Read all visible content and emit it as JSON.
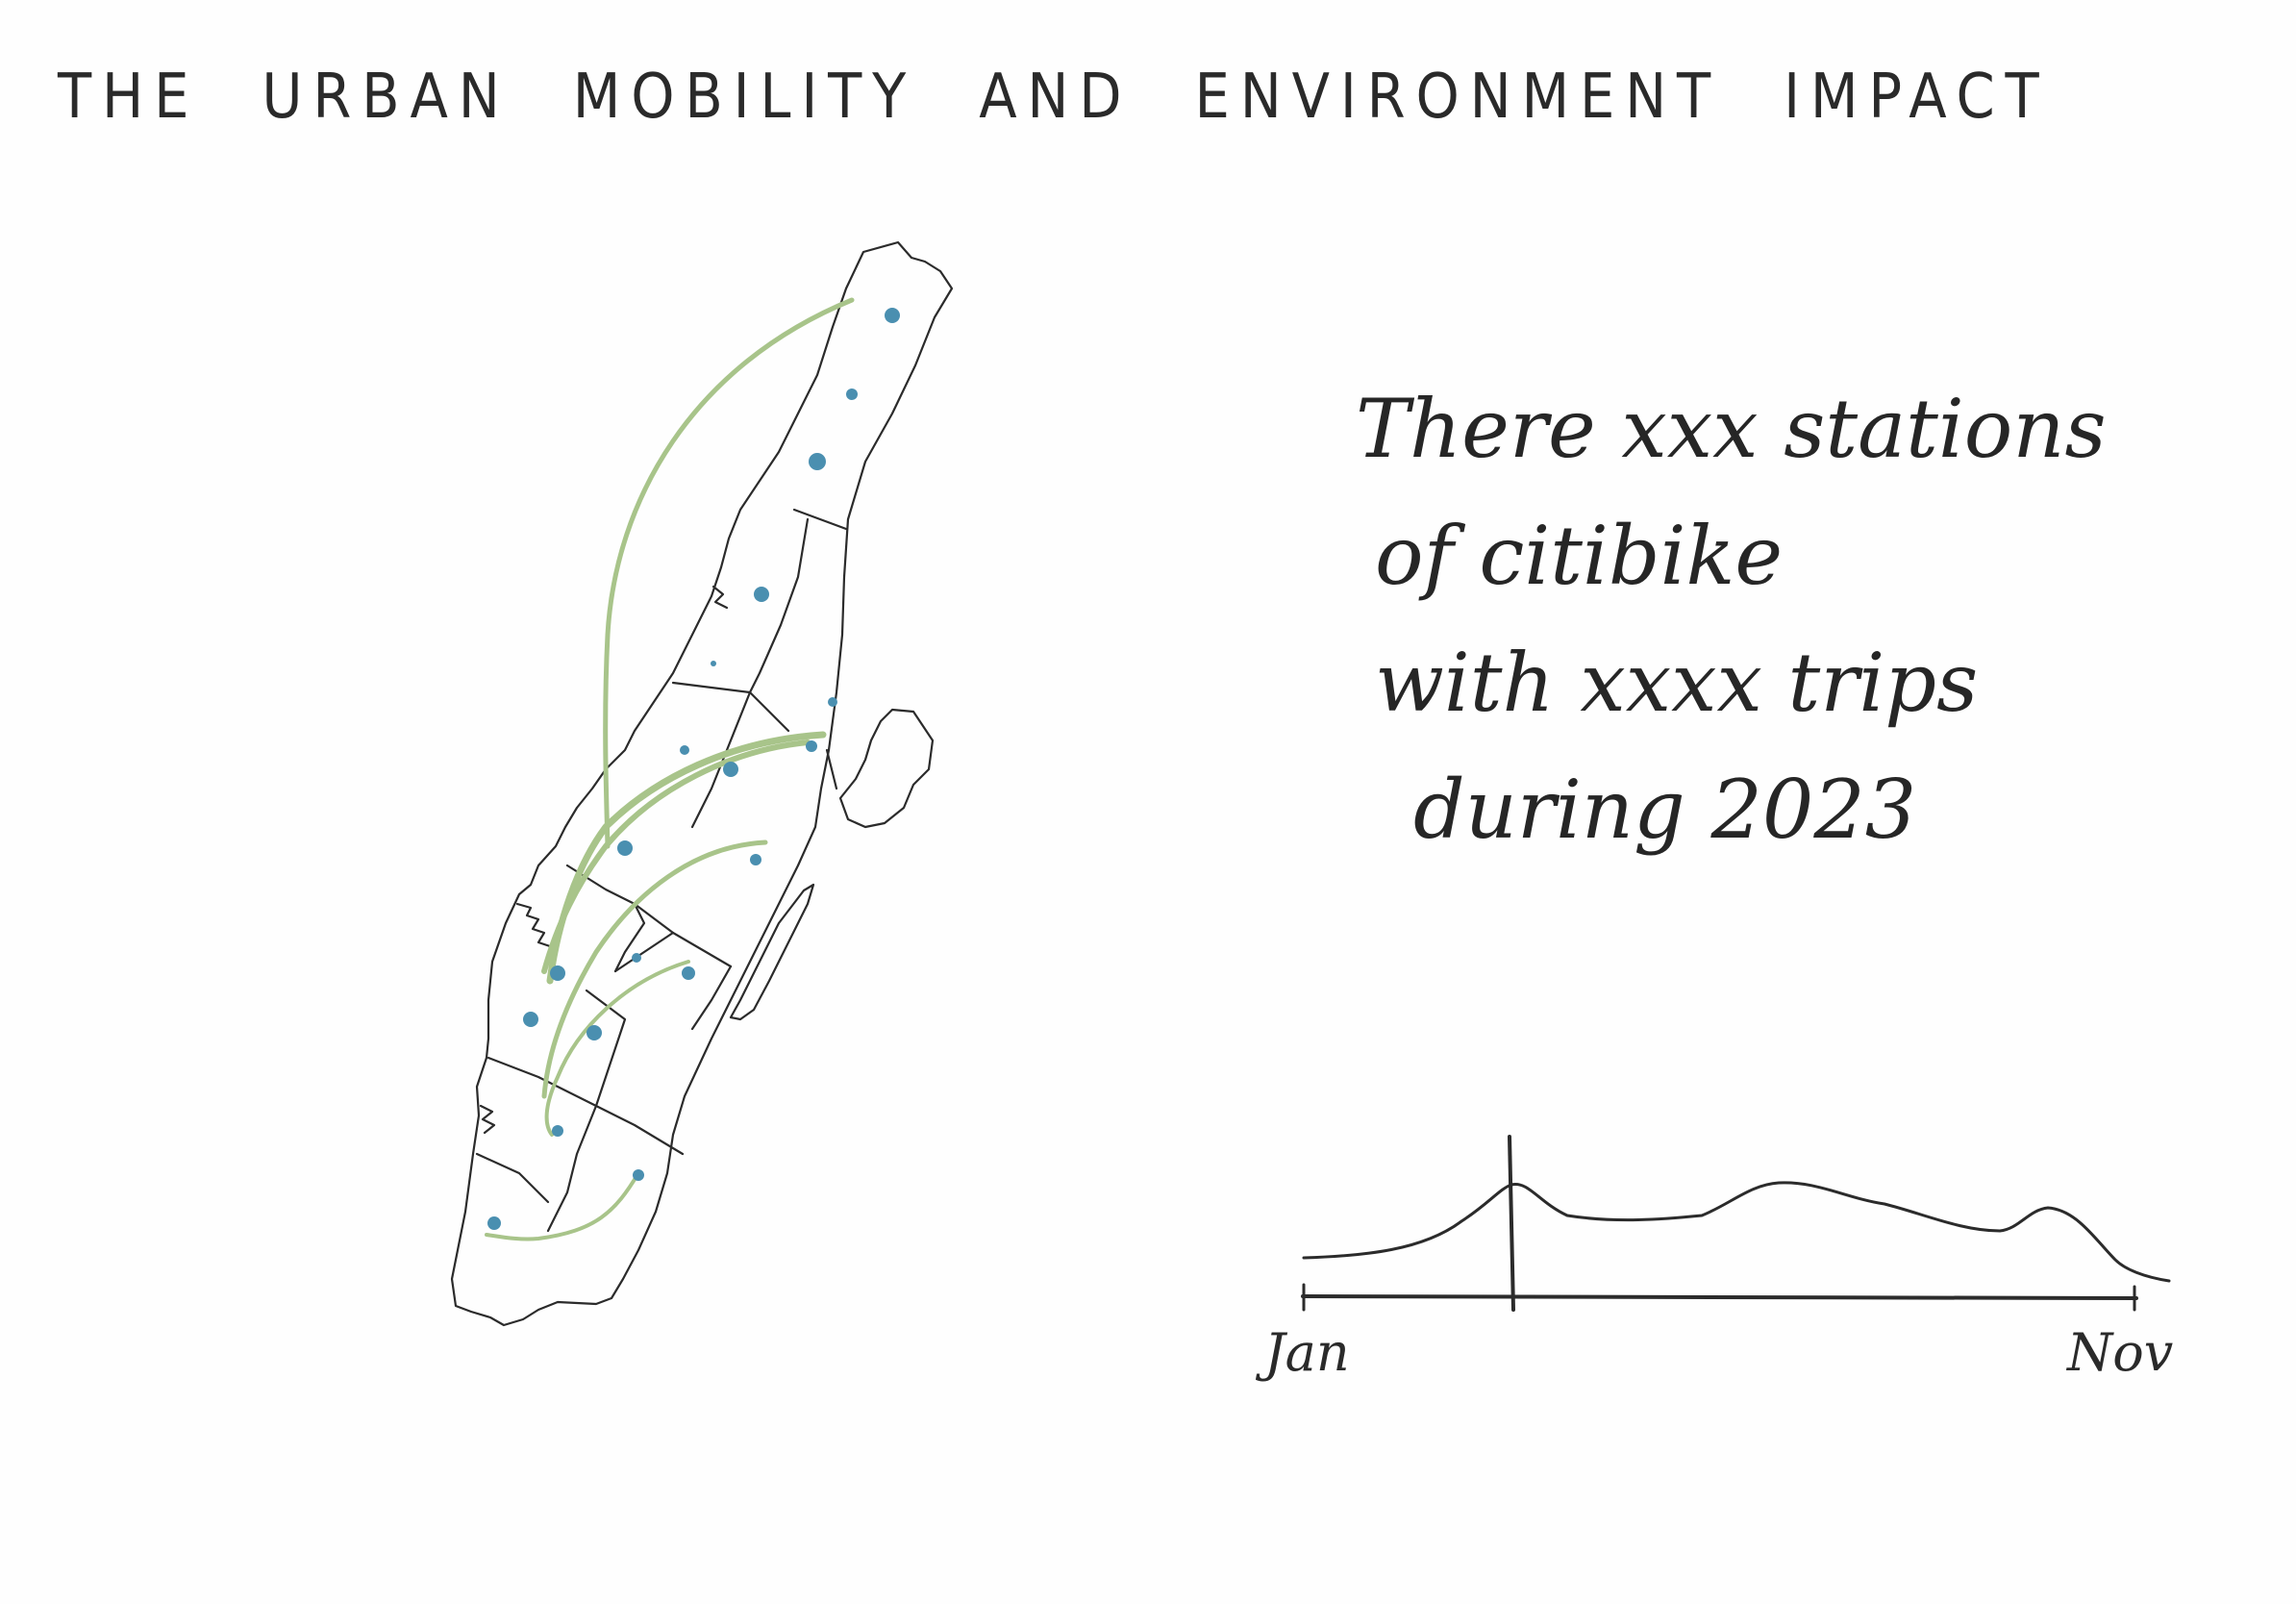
{
  "title": "THE URBAN MOBILITY AND ENVIRONMENT IMPACT",
  "summary": {
    "line1": "There xxx stations",
    "line2": "of citibike",
    "line3": "with xxxx trips",
    "line4": "during 2023"
  },
  "timeline": {
    "start_label": "Jan",
    "end_label": "Nov"
  },
  "colors": {
    "ink": "#2a2a2a",
    "station_dot": "#4a8fb0",
    "trip_arc": "#a8c48a"
  },
  "icons": {
    "map": "manhattan-map-sketch",
    "stations": "station-dot",
    "trips": "trip-arc"
  }
}
